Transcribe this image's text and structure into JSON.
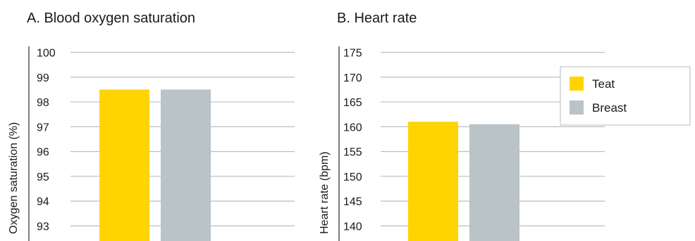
{
  "chart_data": [
    {
      "type": "bar",
      "title": "A. Blood oxygen saturation",
      "ylabel": "Oxygen saturation (%)",
      "xlabel": "",
      "ylim": [
        93,
        100
      ],
      "yticks": [
        93,
        94,
        95,
        96,
        97,
        98,
        99,
        100
      ],
      "grid": true,
      "categories": [
        ""
      ],
      "series": [
        {
          "name": "Teat",
          "color": "#FFD400",
          "values": [
            98.5
          ]
        },
        {
          "name": "Breast",
          "color": "#B9C3C8",
          "values": [
            98.5
          ]
        }
      ]
    },
    {
      "type": "bar",
      "title": "B. Heart rate",
      "ylabel": "Heart rate (bpm)",
      "xlabel": "",
      "ylim": [
        140,
        175
      ],
      "yticks": [
        140,
        145,
        150,
        155,
        160,
        165,
        170,
        175
      ],
      "grid": true,
      "legend_position": "top-right",
      "categories": [
        ""
      ],
      "series": [
        {
          "name": "Teat",
          "color": "#FFD400",
          "values": [
            161
          ]
        },
        {
          "name": "Breast",
          "color": "#B9C3C8",
          "values": [
            160.5
          ]
        }
      ]
    }
  ],
  "legend": {
    "items": [
      {
        "label": "Teat",
        "color": "#FFD400"
      },
      {
        "label": "Breast",
        "color": "#B9C3C8"
      }
    ]
  },
  "colors": {
    "gridline": "#BDBDBD",
    "axis_line": "#555555",
    "text": "#1a1a1a",
    "legend_border": "#D0D0D0"
  }
}
